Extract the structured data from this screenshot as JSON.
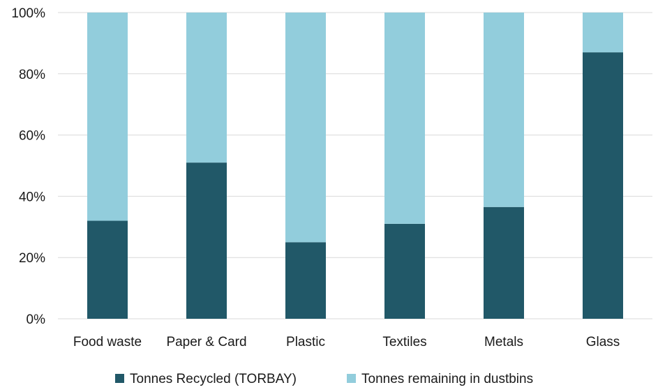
{
  "chart_data": {
    "type": "bar",
    "stacked": true,
    "percent": true,
    "categories": [
      "Food waste",
      "Paper & Card",
      "Plastic",
      "Textiles",
      "Metals",
      "Glass"
    ],
    "series": [
      {
        "name": "Tonnes Recycled (TORBAY)",
        "color": "#215868",
        "values": [
          32,
          51,
          25,
          31,
          36.5,
          87
        ]
      },
      {
        "name": "Tonnes remaining in dustbins",
        "color": "#92cddc",
        "values": [
          68,
          49,
          75,
          69,
          63.5,
          13
        ]
      }
    ],
    "y_ticks": [
      "0%",
      "20%",
      "40%",
      "60%",
      "80%",
      "100%"
    ],
    "ylim": [
      0,
      100
    ],
    "grid": true,
    "gridline_color": "#d9d9d9",
    "legend_position": "bottom"
  }
}
